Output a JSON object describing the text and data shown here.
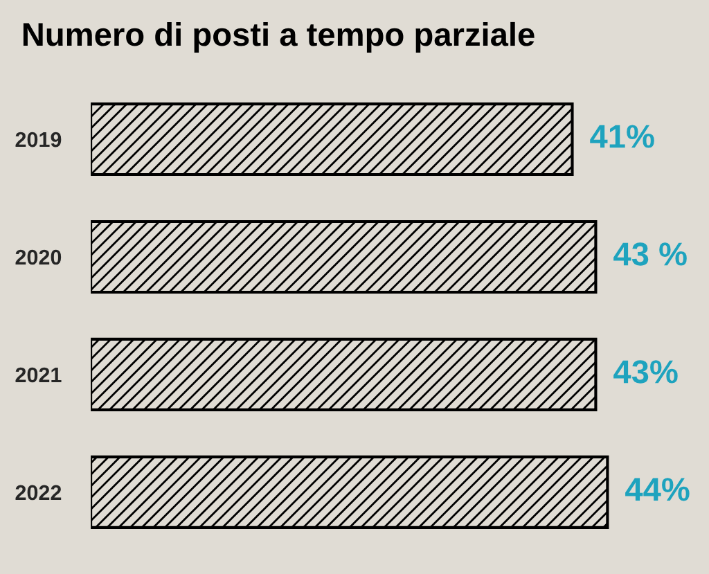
{
  "chart_data": {
    "type": "bar",
    "orientation": "horizontal",
    "title": "Numero di posti a tempo parziale",
    "categories": [
      "2019",
      "2020",
      "2021",
      "2022"
    ],
    "values": [
      41,
      43,
      43,
      44
    ],
    "value_labels": [
      "41%",
      "43 %",
      "43%",
      "44%"
    ],
    "color": "#000000",
    "tick_labels": "y",
    "grid": false,
    "legend": false
  }
}
